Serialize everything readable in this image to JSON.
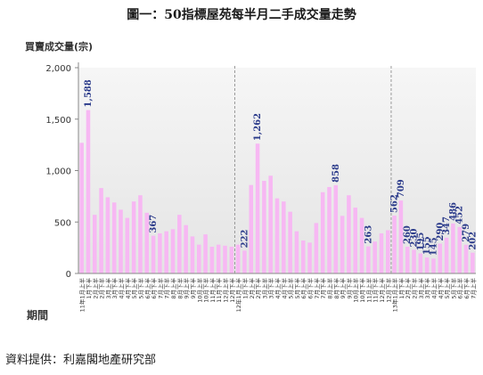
{
  "chart_data": {
    "type": "bar",
    "title": "圖一：50指標屋苑每半月二手成交量走勢",
    "ylabel": "買賣成交量(宗)",
    "xlabel": "期間",
    "ylim": [
      0,
      2000
    ],
    "yticks": [
      "0",
      "500",
      "1,000",
      "1,500",
      "2,000"
    ],
    "bar_color": "#f7b8f3",
    "categories": [
      "11年1月上半",
      "1月下半",
      "2月上半",
      "2月下半",
      "3月上半",
      "3月下半",
      "4月上半",
      "4月下半",
      "5月上半",
      "5月下半",
      "6月上半",
      "6月下半",
      "7月上半",
      "7月下半",
      "8月上半",
      "8月下半",
      "9月上半",
      "9月下半",
      "10月上半",
      "10月下半",
      "11月上半",
      "11月下半",
      "12月上半",
      "12月下半",
      "12年1月上半",
      "1月下半",
      "2月上半",
      "2月下半",
      "3月上半",
      "3月下半",
      "4月上半",
      "4月下半",
      "5月上半",
      "5月下半",
      "6月上半",
      "6月下半",
      "7月上半",
      "7月下半",
      "8月上半",
      "8月下半",
      "9月上半",
      "9月下半",
      "10月上半",
      "10月下半",
      "11月上半",
      "11月下半",
      "12月上半",
      "12月下半",
      "13年1月上半",
      "1月下半",
      "2月上半",
      "2月下半",
      "3月上半",
      "3月下半",
      "4月上半",
      "4月下半",
      "5月上半",
      "5月下半",
      "6月上半",
      "6月下半",
      "7月上半"
    ],
    "values": [
      1270,
      1588,
      570,
      830,
      740,
      690,
      620,
      540,
      700,
      760,
      590,
      367,
      390,
      410,
      430,
      570,
      470,
      360,
      280,
      380,
      260,
      280,
      270,
      260,
      280,
      222,
      860,
      1262,
      900,
      950,
      730,
      700,
      600,
      410,
      320,
      300,
      490,
      790,
      840,
      858,
      560,
      760,
      640,
      540,
      263,
      310,
      390,
      420,
      562,
      709,
      260,
      230,
      195,
      155,
      145,
      290,
      347,
      486,
      452,
      279,
      202
    ],
    "bar_labels": [
      {
        "index": 1,
        "text": "1,588"
      },
      {
        "index": 11,
        "text": "367"
      },
      {
        "index": 25,
        "text": "222"
      },
      {
        "index": 27,
        "text": "1,262"
      },
      {
        "index": 39,
        "text": "858"
      },
      {
        "index": 44,
        "text": "263"
      },
      {
        "index": 48,
        "text": "562"
      },
      {
        "index": 49,
        "text": "709"
      },
      {
        "index": 50,
        "text": "260"
      },
      {
        "index": 51,
        "text": "230"
      },
      {
        "index": 52,
        "text": "195"
      },
      {
        "index": 53,
        "text": "155"
      },
      {
        "index": 54,
        "text": "145"
      },
      {
        "index": 55,
        "text": "290"
      },
      {
        "index": 56,
        "text": "347"
      },
      {
        "index": 57,
        "text": "486"
      },
      {
        "index": 58,
        "text": "452"
      },
      {
        "index": 59,
        "text": "279"
      },
      {
        "index": 60,
        "text": "202"
      }
    ],
    "year_dividers_after_index": [
      23,
      47
    ],
    "grid": false
  },
  "source_note": "資料提供：利嘉閣地產研究部"
}
